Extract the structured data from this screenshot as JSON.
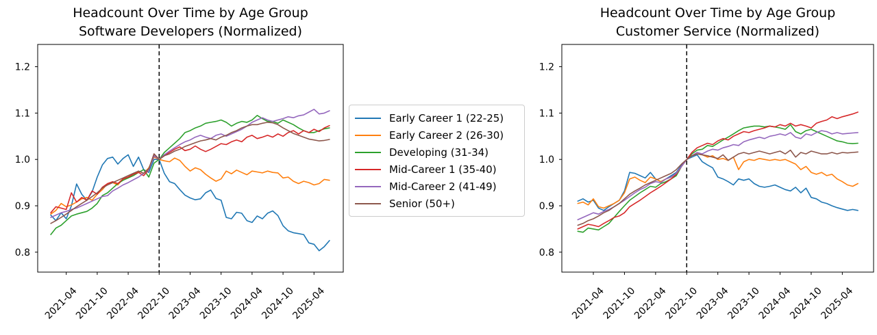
{
  "figure": {
    "background_color": "#ffffff",
    "text_color": "#000000",
    "axis_color": "#000000",
    "legend_border_color": "#cccccc"
  },
  "legend": {
    "items": [
      {
        "label": "Early Career 1 (22-25)",
        "color": "#1f77b4"
      },
      {
        "label": "Early Career 2 (26-30)",
        "color": "#ff7f0e"
      },
      {
        "label": "Developing (31-34)",
        "color": "#2ca02c"
      },
      {
        "label": "Mid-Career 1 (35-40)",
        "color": "#d62728"
      },
      {
        "label": "Mid-Career 2 (41-49)",
        "color": "#9467bd"
      },
      {
        "label": "Senior (50+)",
        "color": "#8c564b"
      }
    ]
  },
  "chart_data": [
    {
      "type": "line",
      "title": "Headcount Over Time by Age Group",
      "subtitle": "Software Developers (Normalized)",
      "x_start_month": "2021-01",
      "n_points": 55,
      "x_tick_labels": [
        "2021-04",
        "2021-10",
        "2022-04",
        "2022-10",
        "2023-04",
        "2023-10",
        "2024-04",
        "2024-10",
        "2025-04"
      ],
      "x_tick_indices": [
        3,
        9,
        15,
        21,
        27,
        33,
        39,
        45,
        51
      ],
      "y_ticks": [
        0.8,
        0.9,
        1.0,
        1.1,
        1.2
      ],
      "ylim": [
        0.757,
        1.248
      ],
      "grid": false,
      "vline_index": 21,
      "vline_style": "dashed",
      "series": [
        {
          "name": "Early Career 1 (22-25)",
          "color": "#1f77b4",
          "values": [
            0.88,
            0.868,
            0.885,
            0.872,
            0.9,
            0.947,
            0.925,
            0.912,
            0.93,
            0.962,
            0.988,
            1.002,
            1.005,
            0.99,
            1.002,
            1.01,
            0.985,
            1.005,
            0.978,
            0.972,
            1.0,
            1.0,
            0.97,
            0.952,
            0.948,
            0.935,
            0.923,
            0.917,
            0.913,
            0.915,
            0.928,
            0.934,
            0.916,
            0.912,
            0.875,
            0.872,
            0.886,
            0.884,
            0.868,
            0.864,
            0.878,
            0.872,
            0.884,
            0.889,
            0.879,
            0.857,
            0.846,
            0.842,
            0.84,
            0.838,
            0.82,
            0.817,
            0.803,
            0.812,
            0.825
          ]
        },
        {
          "name": "Early Career 2 (26-30)",
          "color": "#ff7f0e",
          "values": [
            0.882,
            0.89,
            0.905,
            0.898,
            0.902,
            0.908,
            0.915,
            0.918,
            0.912,
            0.925,
            0.935,
            0.948,
            0.95,
            0.945,
            0.958,
            0.962,
            0.968,
            0.975,
            0.97,
            0.982,
            1.005,
            1.0,
            0.997,
            0.995,
            1.003,
            0.998,
            0.985,
            0.975,
            0.982,
            0.978,
            0.968,
            0.96,
            0.953,
            0.958,
            0.975,
            0.969,
            0.977,
            0.972,
            0.967,
            0.975,
            0.973,
            0.971,
            0.975,
            0.972,
            0.971,
            0.96,
            0.962,
            0.953,
            0.948,
            0.953,
            0.95,
            0.945,
            0.948,
            0.957,
            0.955
          ]
        },
        {
          "name": "Developing (31-34)",
          "color": "#2ca02c",
          "values": [
            0.838,
            0.852,
            0.858,
            0.868,
            0.878,
            0.882,
            0.885,
            0.888,
            0.895,
            0.905,
            0.922,
            0.928,
            0.938,
            0.948,
            0.955,
            0.96,
            0.965,
            0.972,
            0.978,
            0.962,
            0.992,
            1.0,
            1.015,
            1.025,
            1.035,
            1.045,
            1.058,
            1.062,
            1.068,
            1.072,
            1.078,
            1.08,
            1.082,
            1.085,
            1.08,
            1.072,
            1.078,
            1.082,
            1.08,
            1.085,
            1.095,
            1.088,
            1.082,
            1.082,
            1.078,
            1.085,
            1.08,
            1.075,
            1.068,
            1.062,
            1.058,
            1.058,
            1.062,
            1.066,
            1.068
          ]
        },
        {
          "name": "Mid-Career 1 (35-40)",
          "color": "#d62728",
          "values": [
            0.885,
            0.898,
            0.895,
            0.892,
            0.928,
            0.908,
            0.918,
            0.912,
            0.932,
            0.925,
            0.94,
            0.948,
            0.952,
            0.948,
            0.958,
            0.962,
            0.968,
            0.972,
            0.965,
            0.978,
            1.012,
            1.0,
            1.008,
            1.015,
            1.022,
            1.027,
            1.019,
            1.022,
            1.029,
            1.022,
            1.017,
            1.022,
            1.028,
            1.034,
            1.032,
            1.038,
            1.042,
            1.038,
            1.048,
            1.052,
            1.045,
            1.048,
            1.052,
            1.048,
            1.055,
            1.05,
            1.058,
            1.062,
            1.055,
            1.062,
            1.058,
            1.065,
            1.06,
            1.068,
            1.073
          ]
        },
        {
          "name": "Mid-Career 2 (41-49)",
          "color": "#9467bd",
          "values": [
            0.875,
            0.88,
            0.885,
            0.888,
            0.892,
            0.895,
            0.9,
            0.905,
            0.91,
            0.915,
            0.92,
            0.922,
            0.932,
            0.938,
            0.945,
            0.95,
            0.956,
            0.962,
            0.97,
            0.978,
            1.008,
            1.0,
            1.01,
            1.018,
            1.025,
            1.032,
            1.038,
            1.042,
            1.048,
            1.052,
            1.048,
            1.045,
            1.052,
            1.055,
            1.05,
            1.055,
            1.06,
            1.065,
            1.072,
            1.08,
            1.085,
            1.09,
            1.085,
            1.082,
            1.085,
            1.088,
            1.092,
            1.09,
            1.094,
            1.096,
            1.102,
            1.108,
            1.098,
            1.1,
            1.105
          ]
        },
        {
          "name": "Senior (50+)",
          "color": "#8c564b",
          "values": [
            0.862,
            0.868,
            0.875,
            0.882,
            0.89,
            0.898,
            0.905,
            0.912,
            0.92,
            0.928,
            0.938,
            0.945,
            0.95,
            0.955,
            0.96,
            0.965,
            0.97,
            0.975,
            0.97,
            0.98,
            1.012,
            1.0,
            1.008,
            1.012,
            1.018,
            1.022,
            1.028,
            1.032,
            1.036,
            1.04,
            1.042,
            1.045,
            1.042,
            1.048,
            1.052,
            1.058,
            1.062,
            1.068,
            1.072,
            1.075,
            1.075,
            1.078,
            1.08,
            1.079,
            1.075,
            1.068,
            1.062,
            1.056,
            1.052,
            1.048,
            1.044,
            1.042,
            1.04,
            1.041,
            1.043
          ]
        }
      ]
    },
    {
      "type": "line",
      "title": "Headcount Over Time by Age Group",
      "subtitle": "Customer Service (Normalized)",
      "x_start_month": "2021-01",
      "n_points": 55,
      "x_tick_labels": [
        "2021-04",
        "2021-10",
        "2022-04",
        "2022-10",
        "2023-04",
        "2023-10",
        "2024-04",
        "2024-10",
        "2025-04"
      ],
      "x_tick_indices": [
        3,
        9,
        15,
        21,
        27,
        33,
        39,
        45,
        51
      ],
      "y_ticks": [
        0.8,
        0.9,
        1.0,
        1.1,
        1.2
      ],
      "ylim": [
        0.757,
        1.248
      ],
      "grid": false,
      "vline_index": 21,
      "vline_style": "dashed",
      "series": [
        {
          "name": "Early Career 1 (22-25)",
          "color": "#1f77b4",
          "values": [
            0.91,
            0.915,
            0.908,
            0.912,
            0.895,
            0.89,
            0.898,
            0.905,
            0.912,
            0.932,
            0.972,
            0.97,
            0.965,
            0.96,
            0.972,
            0.958,
            0.952,
            0.958,
            0.965,
            0.972,
            0.988,
            1.0,
            1.005,
            1.01,
            0.995,
            0.988,
            0.982,
            0.962,
            0.958,
            0.952,
            0.945,
            0.958,
            0.955,
            0.958,
            0.948,
            0.942,
            0.94,
            0.942,
            0.945,
            0.94,
            0.935,
            0.932,
            0.94,
            0.928,
            0.938,
            0.918,
            0.915,
            0.908,
            0.905,
            0.9,
            0.896,
            0.893,
            0.89,
            0.892,
            0.89
          ]
        },
        {
          "name": "Early Career 2 (26-30)",
          "color": "#ff7f0e",
          "values": [
            0.905,
            0.908,
            0.902,
            0.915,
            0.898,
            0.895,
            0.9,
            0.905,
            0.912,
            0.928,
            0.958,
            0.962,
            0.955,
            0.95,
            0.962,
            0.958,
            0.952,
            0.958,
            0.962,
            0.97,
            0.985,
            1.0,
            1.008,
            1.012,
            1.01,
            1.005,
            1.008,
            1.0,
            1.002,
            0.998,
            1.005,
            0.978,
            0.995,
            1.0,
            0.998,
            1.002,
            1.0,
            0.998,
            1.0,
            0.998,
            1.0,
            0.995,
            0.99,
            0.978,
            0.985,
            0.972,
            0.968,
            0.972,
            0.965,
            0.968,
            0.958,
            0.952,
            0.945,
            0.942,
            0.948
          ]
        },
        {
          "name": "Developing (31-34)",
          "color": "#2ca02c",
          "values": [
            0.845,
            0.843,
            0.852,
            0.85,
            0.848,
            0.855,
            0.862,
            0.875,
            0.888,
            0.9,
            0.912,
            0.92,
            0.928,
            0.935,
            0.942,
            0.94,
            0.948,
            0.952,
            0.958,
            0.965,
            0.985,
            1.0,
            1.012,
            1.02,
            1.022,
            1.03,
            1.028,
            1.035,
            1.042,
            1.048,
            1.055,
            1.062,
            1.068,
            1.07,
            1.072,
            1.072,
            1.07,
            1.072,
            1.07,
            1.068,
            1.065,
            1.075,
            1.06,
            1.055,
            1.062,
            1.065,
            1.06,
            1.055,
            1.05,
            1.045,
            1.04,
            1.038,
            1.035,
            1.034,
            1.035
          ]
        },
        {
          "name": "Mid-Career 1 (35-40)",
          "color": "#d62728",
          "values": [
            0.85,
            0.855,
            0.86,
            0.858,
            0.855,
            0.862,
            0.868,
            0.875,
            0.878,
            0.885,
            0.898,
            0.905,
            0.912,
            0.92,
            0.928,
            0.935,
            0.942,
            0.95,
            0.958,
            0.968,
            0.985,
            1.0,
            1.015,
            1.025,
            1.03,
            1.035,
            1.032,
            1.04,
            1.045,
            1.042,
            1.05,
            1.055,
            1.06,
            1.058,
            1.062,
            1.065,
            1.068,
            1.072,
            1.07,
            1.075,
            1.072,
            1.078,
            1.072,
            1.075,
            1.072,
            1.068,
            1.078,
            1.082,
            1.085,
            1.092,
            1.088,
            1.092,
            1.095,
            1.098,
            1.102
          ]
        },
        {
          "name": "Mid-Career 2 (41-49)",
          "color": "#9467bd",
          "values": [
            0.87,
            0.875,
            0.88,
            0.885,
            0.882,
            0.888,
            0.892,
            0.898,
            0.905,
            0.912,
            0.92,
            0.928,
            0.935,
            0.94,
            0.948,
            0.952,
            0.95,
            0.958,
            0.962,
            0.97,
            0.985,
            1.0,
            1.008,
            1.015,
            1.012,
            1.018,
            1.022,
            1.02,
            1.025,
            1.028,
            1.032,
            1.03,
            1.038,
            1.042,
            1.045,
            1.048,
            1.045,
            1.05,
            1.052,
            1.055,
            1.052,
            1.058,
            1.048,
            1.045,
            1.055,
            1.052,
            1.058,
            1.062,
            1.06,
            1.055,
            1.058,
            1.055,
            1.056,
            1.057,
            1.058
          ]
        },
        {
          "name": "Senior (50+)",
          "color": "#8c564b",
          "values": [
            0.858,
            0.862,
            0.868,
            0.872,
            0.878,
            0.885,
            0.89,
            0.898,
            0.905,
            0.915,
            0.925,
            0.932,
            0.938,
            0.945,
            0.95,
            0.955,
            0.96,
            0.965,
            0.97,
            0.978,
            0.99,
            1.0,
            1.008,
            1.012,
            1.01,
            1.008,
            1.005,
            1.002,
            1.01,
            0.998,
            1.005,
            1.012,
            1.015,
            1.012,
            1.015,
            1.018,
            1.015,
            1.012,
            1.015,
            1.018,
            1.012,
            1.02,
            1.005,
            1.015,
            1.012,
            1.018,
            1.015,
            1.012,
            1.012,
            1.015,
            1.012,
            1.015,
            1.014,
            1.015,
            1.016
          ]
        }
      ]
    }
  ]
}
